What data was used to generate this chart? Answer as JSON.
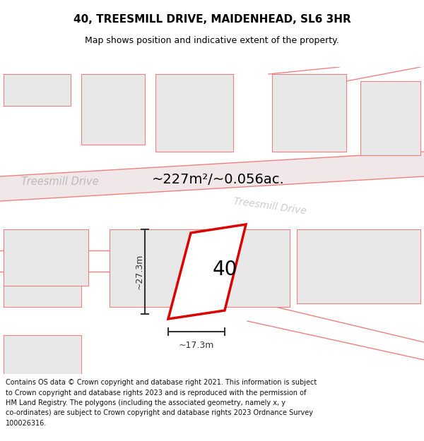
{
  "title_line1": "40, TREESMILL DRIVE, MAIDENHEAD, SL6 3HR",
  "title_line2": "Map shows position and indicative extent of the property.",
  "area_text": "~227m²/~0.056ac.",
  "number_label": "40",
  "dim_width": "~17.3m",
  "dim_height": "~27.3m",
  "street_name1": "Treesmill Drive",
  "street_name2": "Treesmill Drive",
  "footer_lines": [
    "Contains OS data © Crown copyright and database right 2021. This information is subject",
    "to Crown copyright and database rights 2023 and is reproduced with the permission of",
    "HM Land Registry. The polygons (including the associated geometry, namely x, y",
    "co-ordinates) are subject to Crown copyright and database rights 2023 Ordnance Survey",
    "100026316."
  ],
  "bg_color": "#ffffff",
  "map_bg": "#f7f7f7",
  "road_fill": "#f0e8e8",
  "building_fill": "#e8e8e8",
  "pink_edge": "#f08080",
  "plot_fill": "#ffffff",
  "plot_edge": "#dd0000",
  "dim_color": "#333333",
  "title_color": "#000000",
  "street_color1": "#bbbbbb",
  "street_color2": "#cccccc",
  "footer_color": "#111111"
}
